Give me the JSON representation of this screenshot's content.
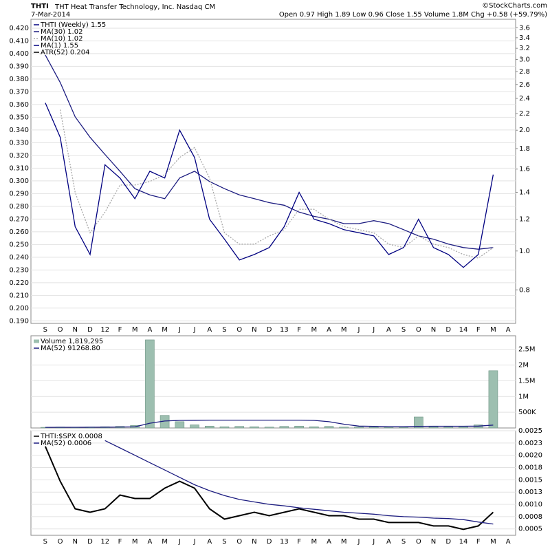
{
  "header": {
    "symbol": "THTI",
    "name": "THT Heat Transfer Technology, Inc. Nasdaq CM",
    "date": "7-Mar-2014",
    "quote": "Open 0.97  High 1.89  Low 0.96  Close 1.55  Volume 1.8M  Chg +0.58 (+59.79%)",
    "watermark": "©StockCharts.com"
  },
  "chart_data": [
    {
      "type": "line",
      "subtitle": "THTI (Weekly) 1.55",
      "annotations": [
        "ATR(52) 0.204"
      ],
      "categories": [
        "S",
        "O",
        "N",
        "D",
        "12",
        "F",
        "M",
        "A",
        "M",
        "J",
        "J",
        "A",
        "S",
        "O",
        "N",
        "D",
        "13",
        "F",
        "M",
        "A",
        "M",
        "J",
        "J",
        "A",
        "S",
        "O",
        "N",
        "D",
        "14",
        "F",
        "M",
        "A"
      ],
      "ylim": [
        0.188,
        0.427
      ],
      "yticks": [
        {
          "value": 0.42,
          "label": "0.420"
        },
        {
          "value": 0.41,
          "label": "0.410"
        },
        {
          "value": 0.4,
          "label": "0.400"
        },
        {
          "value": 0.39,
          "label": "0.390"
        },
        {
          "value": 0.38,
          "label": "0.380"
        },
        {
          "value": 0.37,
          "label": "0.370"
        },
        {
          "value": 0.36,
          "label": "0.360"
        },
        {
          "value": 0.35,
          "label": "0.350"
        },
        {
          "value": 0.34,
          "label": "0.340"
        },
        {
          "value": 0.33,
          "label": "0.330"
        },
        {
          "value": 0.32,
          "label": "0.320"
        },
        {
          "value": 0.31,
          "label": "0.310"
        },
        {
          "value": 0.3,
          "label": "0.300"
        },
        {
          "value": 0.29,
          "label": "0.290"
        },
        {
          "value": 0.28,
          "label": "0.280"
        },
        {
          "value": 0.27,
          "label": "0.270"
        },
        {
          "value": 0.26,
          "label": "0.260"
        },
        {
          "value": 0.25,
          "label": "0.250"
        },
        {
          "value": 0.24,
          "label": "0.240"
        },
        {
          "value": 0.23,
          "label": "0.230"
        },
        {
          "value": 0.22,
          "label": "0.220"
        },
        {
          "value": 0.21,
          "label": "0.210"
        },
        {
          "value": 0.2,
          "label": "0.200"
        },
        {
          "value": 0.19,
          "label": "0.190"
        }
      ],
      "y2lim": [
        0.66,
        3.78
      ],
      "y2_log": true,
      "y2ticks": [
        0.8,
        {
          "value": 1,
          "label": "1.0"
        },
        1.2,
        1.4,
        1.6,
        1.8,
        {
          "value": 2,
          "label": "2.0"
        },
        2.2,
        2.4,
        2.6,
        2.8,
        {
          "value": 3,
          "label": "3.0"
        },
        3.2,
        3.4,
        3.6
      ],
      "grid": true,
      "series": [
        {
          "name": "MA(30) 1.02",
          "color": "#1c1c80",
          "axis": "y2",
          "values": [
            3.08,
            2.63,
            2.16,
            1.92,
            1.74,
            1.58,
            1.43,
            1.38,
            1.35,
            1.52,
            1.58,
            1.49,
            1.43,
            1.38,
            1.35,
            1.32,
            1.3,
            1.25,
            1.22,
            1.2,
            1.17,
            1.17,
            1.19,
            1.17,
            1.13,
            1.09,
            1.07,
            1.04,
            1.02,
            1.01,
            1.02,
            null
          ]
        },
        {
          "name": "MA(10) 1.02",
          "color": "#a8a8a8",
          "dashed": true,
          "axis": "y2",
          "values": [
            null,
            2.25,
            1.4,
            1.11,
            1.25,
            1.46,
            1.46,
            1.49,
            1.55,
            1.71,
            1.81,
            1.52,
            1.11,
            1.04,
            1.04,
            1.09,
            1.13,
            1.27,
            1.27,
            1.2,
            1.15,
            1.13,
            1.11,
            1.04,
            1.02,
            1.09,
            1.04,
            1.02,
            0.98,
            0.96,
            1.02,
            null
          ]
        },
        {
          "name": "MA(1) 1.55",
          "color": "#000080",
          "axis": "y2",
          "values": [
            2.34,
            1.92,
            1.15,
            0.98,
            1.64,
            1.52,
            1.35,
            1.58,
            1.52,
            2.0,
            1.71,
            1.2,
            1.07,
            0.95,
            0.98,
            1.02,
            1.15,
            1.4,
            1.2,
            1.17,
            1.13,
            1.11,
            1.09,
            0.98,
            1.02,
            1.2,
            1.02,
            0.98,
            0.91,
            0.98,
            1.55,
            null
          ]
        }
      ]
    },
    {
      "type": "bar",
      "ylim": [
        0,
        2930000
      ],
      "ytick_side": "right",
      "yticks": [
        {
          "value": 500000,
          "label": "500K"
        },
        {
          "value": 1000000,
          "label": "1M"
        },
        {
          "value": 1500000,
          "label": "1.5M"
        },
        {
          "value": 2000000,
          "label": "2M"
        },
        {
          "value": 2500000,
          "label": "2.5M"
        }
      ],
      "grid": true,
      "series": [
        {
          "name": "Volume 1,819,295",
          "type": "bar",
          "color": "#9dbfb0",
          "values": [
            20000,
            30000,
            20000,
            30000,
            40000,
            50000,
            80000,
            2800000,
            400000,
            200000,
            100000,
            60000,
            40000,
            50000,
            40000,
            30000,
            50000,
            60000,
            40000,
            50000,
            30000,
            30000,
            30000,
            20000,
            20000,
            350000,
            40000,
            30000,
            50000,
            100000,
            1819295,
            null
          ]
        },
        {
          "name": "MA(52) 91268.80",
          "type": "line",
          "color": "#1c1c80",
          "values": [
            20000,
            22000,
            22000,
            24000,
            26000,
            30000,
            35000,
            150000,
            220000,
            240000,
            245000,
            250000,
            250000,
            250000,
            250000,
            250000,
            250000,
            250000,
            240000,
            200000,
            120000,
            60000,
            50000,
            40000,
            40000,
            50000,
            55000,
            55000,
            55000,
            60000,
            91268.8,
            null
          ]
        }
      ]
    },
    {
      "type": "line",
      "categories": [
        "S",
        "O",
        "N",
        "D",
        "12",
        "F",
        "M",
        "A",
        "M",
        "J",
        "J",
        "A",
        "S",
        "O",
        "N",
        "D",
        "13",
        "F",
        "M",
        "A",
        "M",
        "J",
        "J",
        "A",
        "S",
        "O",
        "N",
        "D",
        "14",
        "F",
        "M",
        "A"
      ],
      "ylim": [
        0.00037,
        0.0025
      ],
      "ytick_side": "right",
      "yticks": [
        0.0025,
        {
          "value": 0.00225,
          "label": "0.0023"
        },
        {
          "value": 0.002,
          "label": "0.0020"
        },
        {
          "value": 0.00175,
          "label": "0.0018"
        },
        0.0015,
        {
          "value": 0.00125,
          "label": "0.0013"
        },
        {
          "value": 0.001,
          "label": "0.0010"
        },
        {
          "value": 0.00075,
          "label": "0.0008"
        },
        0.0005
      ],
      "grid": true,
      "series": [
        {
          "name": "THTI:$SPX 0.0008",
          "color": "#000000",
          "width": 2,
          "values": [
            0.00218,
            0.00147,
            0.00091,
            0.00084,
            0.00091,
            0.00119,
            0.00112,
            0.00112,
            0.00133,
            0.00147,
            0.00133,
            0.00091,
            0.0007,
            0.00077,
            0.00084,
            0.00077,
            0.00084,
            0.00091,
            0.00084,
            0.00077,
            0.00077,
            0.0007,
            0.0007,
            0.00063,
            0.00063,
            0.00063,
            0.00056,
            0.00056,
            0.00049,
            0.00056,
            0.00084,
            null
          ]
        },
        {
          "name": "MA(52) 0.0006",
          "color": "#1c1c80",
          "values": [
            null,
            null,
            null,
            null,
            0.0023,
            0.00215,
            0.002,
            0.00185,
            0.0017,
            0.00155,
            0.0014,
            0.00128,
            0.00118,
            0.0011,
            0.00105,
            0.001,
            0.00097,
            0.00093,
            0.0009,
            0.00087,
            0.00084,
            0.00082,
            0.0008,
            0.00077,
            0.00075,
            0.00074,
            0.00072,
            0.00071,
            0.00069,
            0.00064,
            0.0006,
            null
          ]
        }
      ]
    }
  ]
}
